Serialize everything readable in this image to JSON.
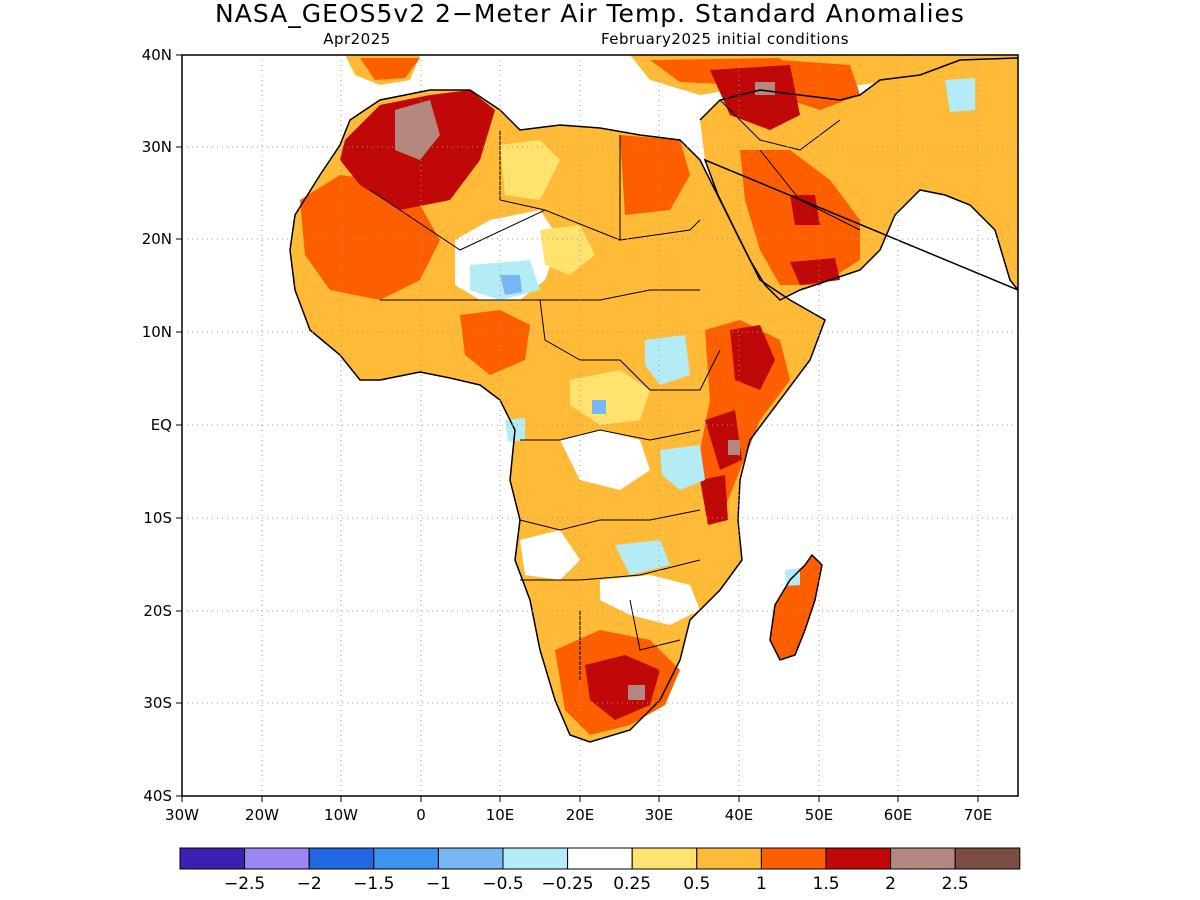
{
  "header": {
    "title": "NASA_GEOS5v2 2−Meter Air Temp. Standard Anomalies",
    "left_subtitle": "Apr2025",
    "right_subtitle": "February2025 initial conditions"
  },
  "axes": {
    "lat_labels": [
      "40N",
      "30N",
      "20N",
      "10N",
      "EQ",
      "10S",
      "20S",
      "30S",
      "40S"
    ],
    "lon_labels": [
      "30W",
      "20W",
      "10W",
      "0",
      "10E",
      "20E",
      "30E",
      "40E",
      "50E",
      "60E",
      "70E"
    ]
  },
  "colorbar": {
    "colors": [
      "#3d1fb4",
      "#9c86f2",
      "#2166e3",
      "#3d94ef",
      "#78b6f4",
      "#b3ecf6",
      "#ffffff",
      "#ffe36e",
      "#ffba37",
      "#fd5e00",
      "#c00808",
      "#b4887e",
      "#7c4d42"
    ],
    "labels": [
      "−2.5",
      "−2",
      "−1.5",
      "−1",
      "−0.5",
      "−0.25",
      "0.25",
      "0.5",
      "1",
      "1.5",
      "2",
      "2.5"
    ]
  },
  "legend_palette": {
    "white": "#ffffff",
    "light_orange": "#ffba37",
    "orange": "#fd5e00",
    "red": "#c00808",
    "brown": "#b4887e",
    "light_blue": "#b3ecf6",
    "blue": "#78b6f4",
    "yellow": "#ffe36e"
  }
}
